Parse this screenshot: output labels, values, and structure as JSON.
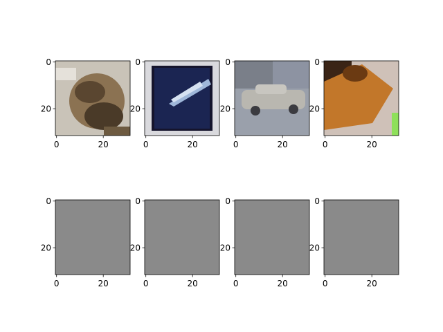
{
  "chart_data": {
    "type": "heatmap",
    "rows": 2,
    "cols": 4,
    "panels": [
      {
        "subject": "frog",
        "row": 0,
        "col": 0,
        "xlim": [
          0,
          31
        ],
        "ylim": [
          31,
          0
        ],
        "xticks": [
          "0",
          "20"
        ],
        "yticks": [
          "0",
          "20"
        ]
      },
      {
        "subject": "airplane-framed",
        "row": 0,
        "col": 1,
        "xlim": [
          0,
          31
        ],
        "ylim": [
          31,
          0
        ],
        "xticks": [
          "0",
          "20"
        ],
        "yticks": [
          "0",
          "20"
        ]
      },
      {
        "subject": "car",
        "row": 0,
        "col": 2,
        "xlim": [
          0,
          31
        ],
        "ylim": [
          31,
          0
        ],
        "xticks": [
          "0",
          "20"
        ],
        "yticks": [
          "0",
          "20"
        ]
      },
      {
        "subject": "dog",
        "row": 0,
        "col": 3,
        "xlim": [
          0,
          31
        ],
        "ylim": [
          31,
          0
        ],
        "xticks": [
          "0",
          "20"
        ],
        "yticks": [
          "0",
          "20"
        ]
      },
      {
        "subject": "gray-noise",
        "row": 1,
        "col": 0,
        "xlim": [
          0,
          31
        ],
        "ylim": [
          31,
          0
        ],
        "xticks": [
          "0",
          "20"
        ],
        "yticks": [
          "0",
          "20"
        ]
      },
      {
        "subject": "gray-noise",
        "row": 1,
        "col": 1,
        "xlim": [
          0,
          31
        ],
        "ylim": [
          31,
          0
        ],
        "xticks": [
          "0",
          "20"
        ],
        "yticks": [
          "0",
          "20"
        ]
      },
      {
        "subject": "gray-noise",
        "row": 1,
        "col": 2,
        "xlim": [
          0,
          31
        ],
        "ylim": [
          31,
          0
        ],
        "xticks": [
          "0",
          "20"
        ],
        "yticks": [
          "0",
          "20"
        ]
      },
      {
        "subject": "gray-noise",
        "row": 1,
        "col": 3,
        "xlim": [
          0,
          31
        ],
        "ylim": [
          31,
          0
        ],
        "xticks": [
          "0",
          "20"
        ],
        "yticks": [
          "0",
          "20"
        ]
      }
    ],
    "colors": {
      "gray_panel": "#8a8a8a",
      "frog_bg": "#c9c3b8",
      "frog_body": "#5a4630",
      "plane_frame": "#d9d9dd",
      "plane_bg": "#1b2552",
      "plane_stripe": "#9fb7d9",
      "car_sky": "#7a7f89",
      "car_ground": "#9aa0ab",
      "car_body": "#b9b7b0",
      "dog_bg": "#cfc1b8",
      "dog_body": "#c2772a",
      "dog_dark": "#6b3a12",
      "dog_green": "#8ee05a"
    }
  }
}
